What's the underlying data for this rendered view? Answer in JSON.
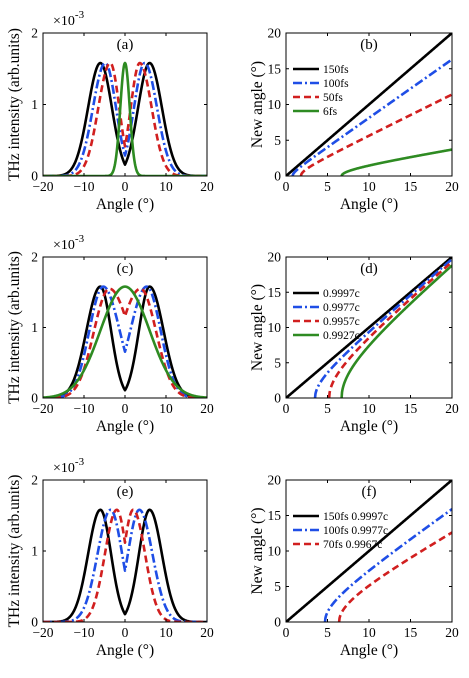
{
  "figure": {
    "panels": [
      {
        "id": "a",
        "label": "(a)",
        "type": "line",
        "xlabel": "Angle (°)",
        "ylabel": "THz intensity (arb.units)",
        "y_exponent": "×10",
        "y_exponent_power": "-3",
        "xlim": [
          -20,
          20
        ],
        "ylim": [
          0,
          2
        ],
        "xticks": [
          -20,
          -10,
          0,
          10,
          20
        ],
        "yticks": [
          0,
          1,
          2
        ],
        "legend": null,
        "curves": [
          {
            "kind": "double",
            "color": "#000000",
            "dash": "solid",
            "peak": 1.58,
            "center": 6.0,
            "inner": 2.8,
            "outer": 3.0
          },
          {
            "kind": "double",
            "color": "#1f4ee6",
            "dash": "dashdot",
            "peak": 1.58,
            "center": 4.8,
            "inner": 2.6,
            "outer": 3.0
          },
          {
            "kind": "double",
            "color": "#d11f1f",
            "dash": "dashed",
            "peak": 1.58,
            "center": 3.6,
            "inner": 2.2,
            "outer": 2.9
          },
          {
            "kind": "single",
            "color": "#2e8b22",
            "dash": "solid",
            "peak": 1.58,
            "width": 1.15
          }
        ]
      },
      {
        "id": "b",
        "label": "(b)",
        "type": "line",
        "xlabel": "Angle (°)",
        "ylabel": "New angle (°)",
        "xlim": [
          0,
          20
        ],
        "ylim": [
          0,
          20
        ],
        "xticks": [
          0,
          5,
          10,
          15,
          20
        ],
        "yticks": [
          0,
          5,
          10,
          15,
          20
        ],
        "legend": [
          "150fs",
          "100fs",
          "50fs",
          "6fs"
        ],
        "curves": [
          {
            "kind": "hyper",
            "name": "150fs",
            "color": "#000000",
            "dash": "solid",
            "theta0": 0.0,
            "ymax": 20.0
          },
          {
            "kind": "hyper",
            "name": "100fs",
            "color": "#1f4ee6",
            "dash": "dashdot",
            "theta0": 0.8,
            "ymax": 16.3
          },
          {
            "kind": "hyper",
            "name": "50fs",
            "color": "#d11f1f",
            "dash": "dashed",
            "theta0": 1.8,
            "ymax": 11.4
          },
          {
            "kind": "hyper",
            "name": "6fs",
            "color": "#2e8b22",
            "dash": "solid",
            "theta0": 6.7,
            "ymax": 3.7
          }
        ]
      },
      {
        "id": "c",
        "label": "(c)",
        "type": "line",
        "xlabel": "Angle (°)",
        "ylabel": "THz intensity (arb.units)",
        "y_exponent": "×10",
        "y_exponent_power": "-3",
        "xlim": [
          -20,
          20
        ],
        "ylim": [
          0,
          2
        ],
        "xticks": [
          -20,
          -10,
          0,
          10,
          20
        ],
        "yticks": [
          0,
          1,
          2
        ],
        "legend": null,
        "curves": [
          {
            "kind": "double",
            "color": "#000000",
            "dash": "solid",
            "peak": 1.58,
            "center": 6.0,
            "inner": 2.6,
            "outer": 3.4
          },
          {
            "kind": "double",
            "color": "#1f4ee6",
            "dash": "dashdot",
            "peak": 1.58,
            "center": 5.3,
            "inner": 4.0,
            "outer": 3.4
          },
          {
            "kind": "double",
            "color": "#d11f1f",
            "dash": "dashed",
            "peak": 1.55,
            "center": 3.8,
            "inner": 5.0,
            "outer": 3.8
          },
          {
            "kind": "single",
            "color": "#2e8b22",
            "dash": "solid",
            "peak": 1.58,
            "width": 6.0
          }
        ]
      },
      {
        "id": "d",
        "label": "(d)",
        "type": "line",
        "xlabel": "Angle (°)",
        "ylabel": "New angle (°)",
        "xlim": [
          0,
          20
        ],
        "ylim": [
          0,
          20
        ],
        "xticks": [
          0,
          5,
          10,
          15,
          20
        ],
        "yticks": [
          0,
          5,
          10,
          15,
          20
        ],
        "legend": [
          "0.9997c",
          "0.9977c",
          "0.9957c",
          "0.9927c"
        ],
        "curves": [
          {
            "kind": "hyper",
            "name": "0.9997c",
            "color": "#000000",
            "dash": "solid",
            "theta0": 0.0,
            "ymax": 20.0
          },
          {
            "kind": "hyper",
            "name": "0.9977c",
            "color": "#1f4ee6",
            "dash": "dashdot",
            "theta0": 3.5,
            "ymax": 19.7
          },
          {
            "kind": "hyper",
            "name": "0.9957c",
            "color": "#d11f1f",
            "dash": "dashed",
            "theta0": 5.2,
            "ymax": 19.3
          },
          {
            "kind": "hyper",
            "name": "0.9927c",
            "color": "#2e8b22",
            "dash": "solid",
            "theta0": 6.7,
            "ymax": 18.8
          }
        ]
      },
      {
        "id": "e",
        "label": "(e)",
        "type": "line",
        "xlabel": "Angle (°)",
        "ylabel": "THz intensity (arb.units)",
        "y_exponent": "×10",
        "y_exponent_power": "-3",
        "xlim": [
          -20,
          20
        ],
        "ylim": [
          0,
          2
        ],
        "xticks": [
          -20,
          -10,
          0,
          10,
          20
        ],
        "yticks": [
          0,
          1,
          2
        ],
        "legend": null,
        "curves": [
          {
            "kind": "double",
            "color": "#000000",
            "dash": "solid",
            "peak": 1.58,
            "center": 6.0,
            "inner": 2.6,
            "outer": 3.0
          },
          {
            "kind": "double",
            "color": "#1f4ee6",
            "dash": "dashdot",
            "peak": 1.58,
            "center": 3.5,
            "inner": 2.8,
            "outer": 3.2
          },
          {
            "kind": "double",
            "color": "#d11f1f",
            "dash": "dashed",
            "peak": 1.58,
            "center": 2.0,
            "inner": 2.4,
            "outer": 2.9
          }
        ]
      },
      {
        "id": "f",
        "label": "(f)",
        "type": "line",
        "xlabel": "Angle (°)",
        "ylabel": "New angle (°)",
        "xlim": [
          0,
          20
        ],
        "ylim": [
          0,
          20
        ],
        "xticks": [
          0,
          5,
          10,
          15,
          20
        ],
        "yticks": [
          0,
          5,
          10,
          15,
          20
        ],
        "legend": [
          "150fs 0.9997c",
          "100fs 0.9977c",
          "70fs   0.9967c"
        ],
        "curves": [
          {
            "kind": "hyper",
            "name": "150fs 0.9997c",
            "color": "#000000",
            "dash": "solid",
            "theta0": 0.0,
            "ymax": 20.0
          },
          {
            "kind": "hyper",
            "name": "100fs 0.9977c",
            "color": "#1f4ee6",
            "dash": "dashdot",
            "theta0": 4.7,
            "ymax": 15.9
          },
          {
            "kind": "hyper",
            "name": "70fs   0.9967c",
            "color": "#d11f1f",
            "dash": "dashed",
            "theta0": 6.4,
            "ymax": 12.6
          }
        ]
      }
    ]
  }
}
